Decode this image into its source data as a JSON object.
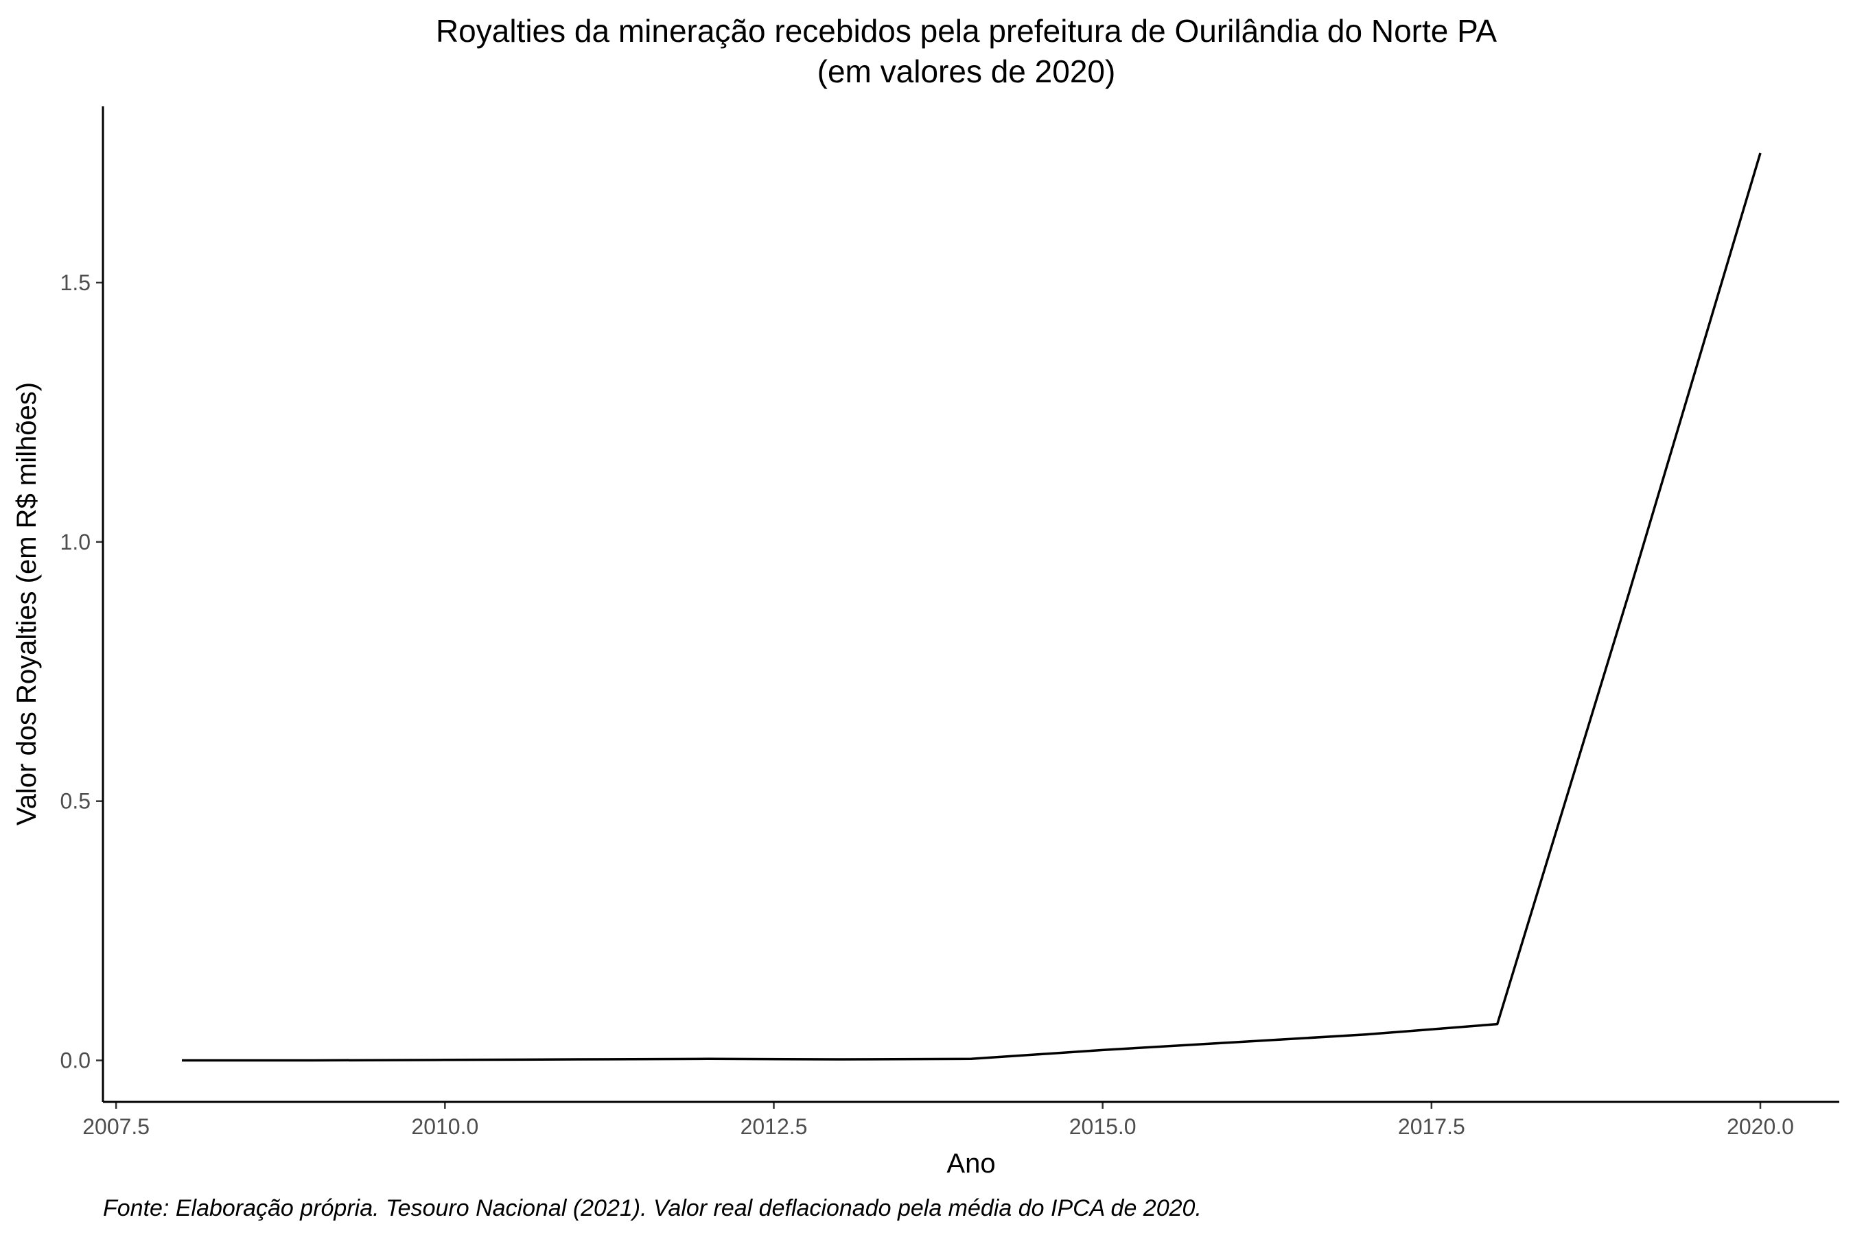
{
  "chart_data": {
    "type": "line",
    "title_line1": "Royalties da mineração recebidos pela prefeitura de Ourilândia do Norte PA",
    "title_line2": "(em valores de 2020)",
    "xlabel": "Ano",
    "ylabel": "Valor dos Royalties (em R$ milhões)",
    "caption": "Fonte: Elaboração própria. Tesouro Nacional (2021). Valor real deflacionado pela média do IPCA de 2020.",
    "x": [
      2008,
      2009,
      2010,
      2011,
      2012,
      2013,
      2014,
      2015,
      2016,
      2017,
      2018,
      2019,
      2020
    ],
    "y": [
      0.0,
      0.0,
      0.001,
      0.002,
      0.003,
      0.002,
      0.003,
      0.02,
      0.035,
      0.05,
      0.07,
      0.9,
      1.75
    ],
    "xlim": [
      2007.4,
      2020.6
    ],
    "ylim": [
      -0.08,
      1.84
    ],
    "xticks": [
      2007.5,
      2010.0,
      2012.5,
      2015.0,
      2017.5,
      2020.0
    ],
    "xtick_labels": [
      "2007.5",
      "2010.0",
      "2012.5",
      "2015.0",
      "2017.5",
      "2020.0"
    ],
    "yticks": [
      0.0,
      0.5,
      1.0,
      1.5
    ],
    "ytick_labels": [
      "0.0",
      "0.5",
      "1.0",
      "1.5"
    ],
    "grid": false,
    "line_color": "#000000"
  }
}
